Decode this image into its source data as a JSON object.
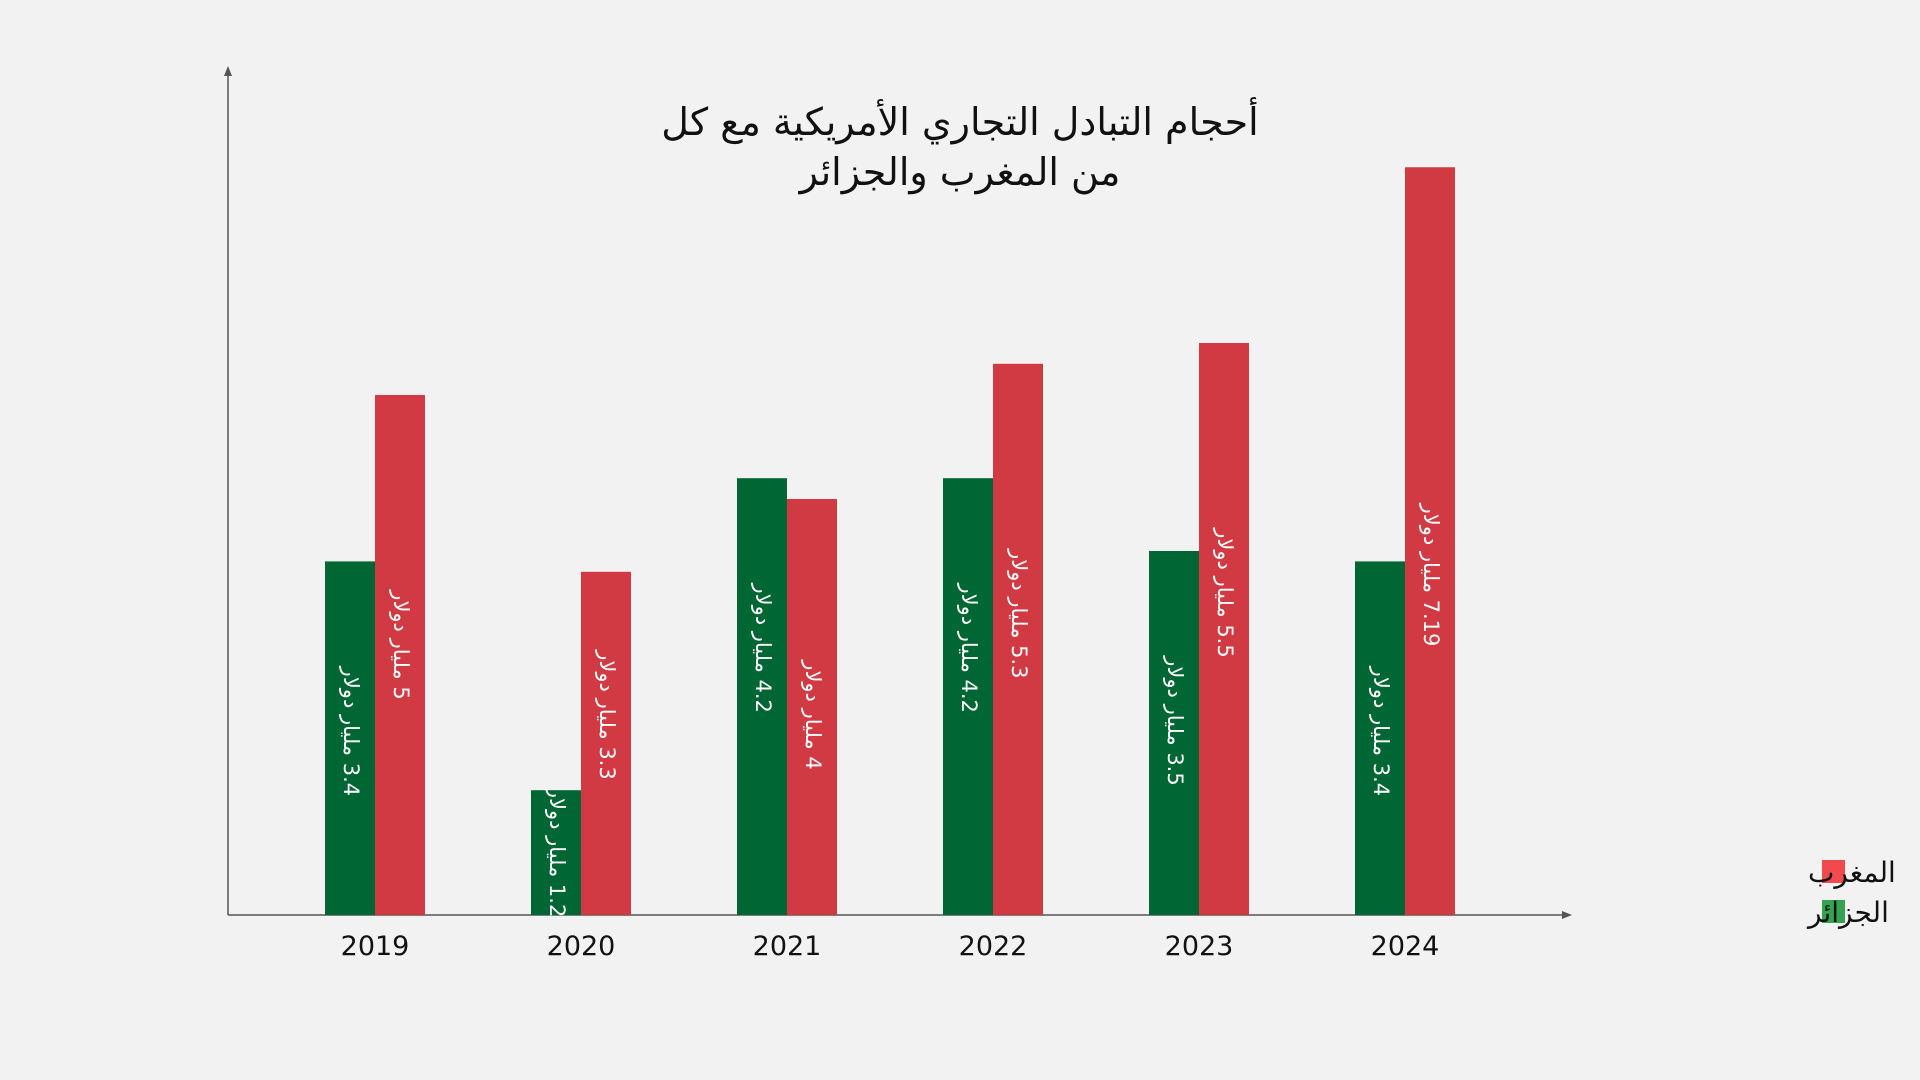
{
  "chart_data": {
    "type": "bar",
    "title": [
      "أحجام التبادل التجاري الأمريكية مع كل",
      "من المغرب والجزائر"
    ],
    "categories": [
      "2019",
      "2020",
      "2021",
      "2022",
      "2023",
      "2024"
    ],
    "series": [
      {
        "name": "الجزائر",
        "color": "#006633",
        "values": [
          3.4,
          1.2,
          4.2,
          4.2,
          3.5,
          3.4
        ],
        "labels": [
          "3.4 مليار دولار",
          "1.2 مليار دولار",
          "4.2 مليار دولار",
          "4.2 مليار دولار",
          "3.5 مليار دولار",
          "3.4 مليار دولار"
        ]
      },
      {
        "name": "المغرب",
        "color": "#d13a43",
        "values": [
          5,
          3.3,
          4,
          5.3,
          5.5,
          7.19
        ],
        "labels": [
          "5 مليار دولار",
          "3.3 مليار دولار",
          "4 مليار دولار",
          "5.3 مليار دولار",
          "5.5 مليار دولار",
          "7.19 مليار دولار"
        ]
      }
    ],
    "legend": [
      {
        "name": "المغرب",
        "color": "#f04a4f"
      },
      {
        "name": "الجزائر",
        "color": "#33a34f"
      }
    ],
    "legend_position": "right",
    "xlabel": "",
    "ylabel": "",
    "ylim": [
      0,
      7.8
    ],
    "grid": false
  }
}
